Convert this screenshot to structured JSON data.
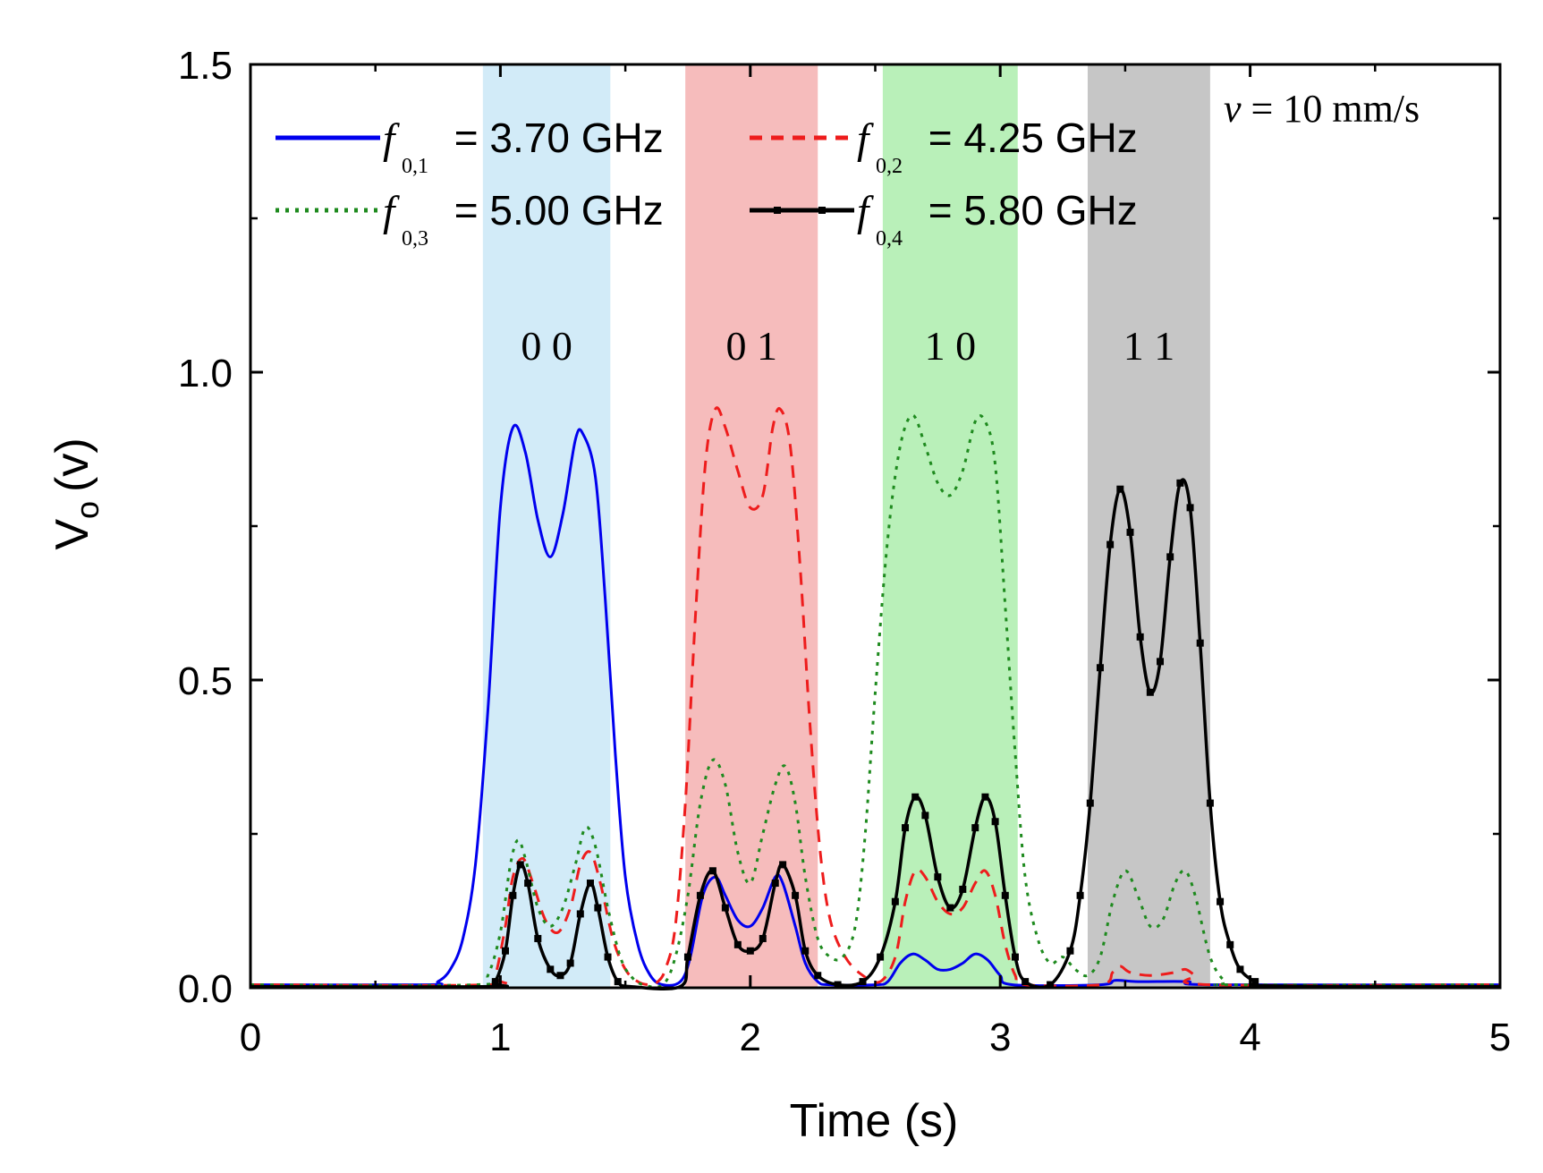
{
  "chart_data": {
    "type": "line",
    "title": "",
    "xlabel": "Time (s)",
    "ylabel_main": "V",
    "ylabel_sub": "o",
    "ylabel_unit": "(v)",
    "xlim": [
      0,
      5
    ],
    "ylim": [
      0,
      1.5
    ],
    "xticks": [
      {
        "value": 0,
        "label": "0"
      },
      {
        "value": 1,
        "label": "1"
      },
      {
        "value": 2,
        "label": "2"
      },
      {
        "value": 3,
        "label": "3"
      },
      {
        "value": 4,
        "label": "4"
      },
      {
        "value": 5,
        "label": "5"
      }
    ],
    "yticks": [
      {
        "value": 0.0,
        "label": "0.0"
      },
      {
        "value": 0.5,
        "label": "0.5"
      },
      {
        "value": 1.0,
        "label": "1.0"
      },
      {
        "value": 1.5,
        "label": "1.5"
      }
    ],
    "grid": false,
    "annotation": {
      "symbol": "v",
      "text": " = 10 mm/s"
    },
    "bands": [
      {
        "label": "0 0",
        "start": 0.93,
        "end": 1.44,
        "color": "#d2ebf8"
      },
      {
        "label": "0 1",
        "start": 1.74,
        "end": 2.27,
        "color": "#f6bcbc"
      },
      {
        "label": "1 0",
        "start": 2.53,
        "end": 3.07,
        "color": "#b9f0b9"
      },
      {
        "label": "1 1",
        "start": 3.35,
        "end": 3.84,
        "color": "#c6c6c6"
      }
    ],
    "series": [
      {
        "name": "f0,1 = 3.70 GHz",
        "sym": "f",
        "sub": "0,1",
        "freq": " = 3.70 GHz",
        "color": "#0000ee",
        "dash": "",
        "markers": false,
        "points": [
          [
            0,
            0.005
          ],
          [
            0.7,
            0.005
          ],
          [
            0.75,
            0.01
          ],
          [
            0.8,
            0.03
          ],
          [
            0.85,
            0.08
          ],
          [
            0.9,
            0.2
          ],
          [
            0.95,
            0.45
          ],
          [
            1.0,
            0.78
          ],
          [
            1.05,
            0.91
          ],
          [
            1.1,
            0.87
          ],
          [
            1.15,
            0.76
          ],
          [
            1.2,
            0.7
          ],
          [
            1.25,
            0.77
          ],
          [
            1.3,
            0.89
          ],
          [
            1.33,
            0.9
          ],
          [
            1.38,
            0.83
          ],
          [
            1.42,
            0.63
          ],
          [
            1.46,
            0.38
          ],
          [
            1.5,
            0.18
          ],
          [
            1.55,
            0.07
          ],
          [
            1.6,
            0.02
          ],
          [
            1.65,
            0.005
          ],
          [
            1.72,
            0.01
          ],
          [
            1.76,
            0.05
          ],
          [
            1.81,
            0.15
          ],
          [
            1.86,
            0.18
          ],
          [
            1.9,
            0.15
          ],
          [
            1.95,
            0.11
          ],
          [
            2.0,
            0.1
          ],
          [
            2.05,
            0.13
          ],
          [
            2.1,
            0.18
          ],
          [
            2.13,
            0.17
          ],
          [
            2.18,
            0.1
          ],
          [
            2.22,
            0.04
          ],
          [
            2.27,
            0.01
          ],
          [
            2.32,
            0.005
          ],
          [
            2.5,
            0.005
          ],
          [
            2.55,
            0.01
          ],
          [
            2.6,
            0.04
          ],
          [
            2.65,
            0.055
          ],
          [
            2.7,
            0.045
          ],
          [
            2.75,
            0.03
          ],
          [
            2.8,
            0.03
          ],
          [
            2.85,
            0.04
          ],
          [
            2.9,
            0.055
          ],
          [
            2.95,
            0.045
          ],
          [
            3.0,
            0.02
          ],
          [
            3.05,
            0.005
          ],
          [
            3.4,
            0.005
          ],
          [
            3.46,
            0.012
          ],
          [
            3.55,
            0.01
          ],
          [
            3.75,
            0.01
          ],
          [
            3.85,
            0.005
          ],
          [
            5,
            0.005
          ]
        ]
      },
      {
        "name": "f0,2 = 4.25 GHz",
        "sym": "f",
        "sub": "0,2",
        "freq": " = 4.25 GHz",
        "color": "#ee1c1c",
        "dash": "14,10",
        "markers": false,
        "points": [
          [
            0,
            0.005
          ],
          [
            0.95,
            0.005
          ],
          [
            0.98,
            0.02
          ],
          [
            1.02,
            0.1
          ],
          [
            1.05,
            0.18
          ],
          [
            1.09,
            0.21
          ],
          [
            1.13,
            0.17
          ],
          [
            1.18,
            0.11
          ],
          [
            1.23,
            0.09
          ],
          [
            1.28,
            0.13
          ],
          [
            1.32,
            0.2
          ],
          [
            1.36,
            0.22
          ],
          [
            1.4,
            0.17
          ],
          [
            1.45,
            0.08
          ],
          [
            1.5,
            0.03
          ],
          [
            1.55,
            0.01
          ],
          [
            1.6,
            0.005
          ],
          [
            1.63,
            0.01
          ],
          [
            1.66,
            0.03
          ],
          [
            1.7,
            0.1
          ],
          [
            1.74,
            0.3
          ],
          [
            1.78,
            0.6
          ],
          [
            1.82,
            0.85
          ],
          [
            1.86,
            0.94
          ],
          [
            1.9,
            0.91
          ],
          [
            1.95,
            0.84
          ],
          [
            2.0,
            0.78
          ],
          [
            2.05,
            0.8
          ],
          [
            2.09,
            0.91
          ],
          [
            2.12,
            0.94
          ],
          [
            2.16,
            0.88
          ],
          [
            2.2,
            0.68
          ],
          [
            2.24,
            0.42
          ],
          [
            2.28,
            0.22
          ],
          [
            2.32,
            0.11
          ],
          [
            2.38,
            0.05
          ],
          [
            2.45,
            0.02
          ],
          [
            2.52,
            0.01
          ],
          [
            2.58,
            0.05
          ],
          [
            2.62,
            0.14
          ],
          [
            2.66,
            0.19
          ],
          [
            2.7,
            0.18
          ],
          [
            2.75,
            0.14
          ],
          [
            2.8,
            0.12
          ],
          [
            2.85,
            0.13
          ],
          [
            2.9,
            0.17
          ],
          [
            2.94,
            0.19
          ],
          [
            2.98,
            0.15
          ],
          [
            3.02,
            0.07
          ],
          [
            3.06,
            0.02
          ],
          [
            3.1,
            0.005
          ],
          [
            3.4,
            0.005
          ],
          [
            3.45,
            0.025
          ],
          [
            3.48,
            0.035
          ],
          [
            3.52,
            0.025
          ],
          [
            3.6,
            0.02
          ],
          [
            3.7,
            0.025
          ],
          [
            3.74,
            0.03
          ],
          [
            3.78,
            0.02
          ],
          [
            3.84,
            0.005
          ],
          [
            5,
            0.005
          ]
        ]
      },
      {
        "name": "f0,3 = 5.00 GHz",
        "sym": "f",
        "sub": "0,3",
        "freq": " = 5.00 GHz",
        "color": "#1e8a1e",
        "dash": "4,7",
        "markers": false,
        "points": [
          [
            0,
            0.005
          ],
          [
            0.9,
            0.005
          ],
          [
            0.95,
            0.02
          ],
          [
            1.0,
            0.09
          ],
          [
            1.04,
            0.2
          ],
          [
            1.07,
            0.24
          ],
          [
            1.1,
            0.21
          ],
          [
            1.15,
            0.13
          ],
          [
            1.2,
            0.1
          ],
          [
            1.25,
            0.13
          ],
          [
            1.3,
            0.2
          ],
          [
            1.34,
            0.26
          ],
          [
            1.38,
            0.23
          ],
          [
            1.43,
            0.13
          ],
          [
            1.48,
            0.05
          ],
          [
            1.52,
            0.02
          ],
          [
            1.57,
            0.005
          ],
          [
            1.65,
            0.005
          ],
          [
            1.7,
            0.05
          ],
          [
            1.75,
            0.15
          ],
          [
            1.8,
            0.3
          ],
          [
            1.85,
            0.37
          ],
          [
            1.9,
            0.33
          ],
          [
            1.95,
            0.22
          ],
          [
            2.0,
            0.17
          ],
          [
            2.05,
            0.25
          ],
          [
            2.1,
            0.33
          ],
          [
            2.14,
            0.36
          ],
          [
            2.18,
            0.3
          ],
          [
            2.22,
            0.18
          ],
          [
            2.27,
            0.08
          ],
          [
            2.32,
            0.05
          ],
          [
            2.37,
            0.05
          ],
          [
            2.42,
            0.1
          ],
          [
            2.46,
            0.25
          ],
          [
            2.5,
            0.48
          ],
          [
            2.55,
            0.73
          ],
          [
            2.6,
            0.88
          ],
          [
            2.65,
            0.93
          ],
          [
            2.7,
            0.88
          ],
          [
            2.75,
            0.82
          ],
          [
            2.8,
            0.8
          ],
          [
            2.85,
            0.84
          ],
          [
            2.9,
            0.92
          ],
          [
            2.94,
            0.92
          ],
          [
            2.98,
            0.85
          ],
          [
            3.02,
            0.62
          ],
          [
            3.06,
            0.38
          ],
          [
            3.1,
            0.18
          ],
          [
            3.15,
            0.08
          ],
          [
            3.2,
            0.04
          ],
          [
            3.25,
            0.05
          ],
          [
            3.3,
            0.03
          ],
          [
            3.35,
            0.02
          ],
          [
            3.4,
            0.05
          ],
          [
            3.45,
            0.14
          ],
          [
            3.5,
            0.19
          ],
          [
            3.55,
            0.15
          ],
          [
            3.6,
            0.1
          ],
          [
            3.65,
            0.11
          ],
          [
            3.7,
            0.17
          ],
          [
            3.74,
            0.19
          ],
          [
            3.78,
            0.15
          ],
          [
            3.84,
            0.05
          ],
          [
            3.9,
            0.01
          ],
          [
            3.95,
            0.005
          ],
          [
            5,
            0.005
          ]
        ]
      },
      {
        "name": "f0,4 = 5.80 GHz",
        "sym": "f",
        "sub": "0,4",
        "freq": " = 5.80 GHz",
        "color": "#000000",
        "dash": "",
        "markers": true,
        "points": [
          [
            0,
            0.002
          ],
          [
            0.95,
            0.002
          ],
          [
            0.98,
            0.01
          ],
          [
            1.02,
            0.06
          ],
          [
            1.05,
            0.15
          ],
          [
            1.08,
            0.2
          ],
          [
            1.11,
            0.17
          ],
          [
            1.15,
            0.08
          ],
          [
            1.2,
            0.03
          ],
          [
            1.24,
            0.02
          ],
          [
            1.28,
            0.04
          ],
          [
            1.32,
            0.12
          ],
          [
            1.36,
            0.17
          ],
          [
            1.39,
            0.13
          ],
          [
            1.43,
            0.05
          ],
          [
            1.47,
            0.01
          ],
          [
            1.52,
            0.002
          ],
          [
            1.72,
            0.002
          ],
          [
            1.75,
            0.05
          ],
          [
            1.8,
            0.15
          ],
          [
            1.85,
            0.19
          ],
          [
            1.9,
            0.13
          ],
          [
            1.95,
            0.07
          ],
          [
            2.0,
            0.06
          ],
          [
            2.05,
            0.08
          ],
          [
            2.1,
            0.17
          ],
          [
            2.13,
            0.2
          ],
          [
            2.18,
            0.15
          ],
          [
            2.22,
            0.06
          ],
          [
            2.27,
            0.02
          ],
          [
            2.35,
            0.005
          ],
          [
            2.45,
            0.01
          ],
          [
            2.52,
            0.05
          ],
          [
            2.58,
            0.14
          ],
          [
            2.62,
            0.26
          ],
          [
            2.66,
            0.31
          ],
          [
            2.7,
            0.28
          ],
          [
            2.75,
            0.18
          ],
          [
            2.8,
            0.13
          ],
          [
            2.85,
            0.16
          ],
          [
            2.9,
            0.26
          ],
          [
            2.94,
            0.31
          ],
          [
            2.98,
            0.27
          ],
          [
            3.02,
            0.15
          ],
          [
            3.06,
            0.05
          ],
          [
            3.1,
            0.01
          ],
          [
            3.2,
            0.005
          ],
          [
            3.28,
            0.06
          ],
          [
            3.32,
            0.15
          ],
          [
            3.36,
            0.3
          ],
          [
            3.4,
            0.52
          ],
          [
            3.44,
            0.72
          ],
          [
            3.48,
            0.81
          ],
          [
            3.52,
            0.74
          ],
          [
            3.56,
            0.57
          ],
          [
            3.6,
            0.48
          ],
          [
            3.64,
            0.53
          ],
          [
            3.68,
            0.7
          ],
          [
            3.72,
            0.82
          ],
          [
            3.76,
            0.78
          ],
          [
            3.8,
            0.56
          ],
          [
            3.84,
            0.3
          ],
          [
            3.88,
            0.14
          ],
          [
            3.92,
            0.07
          ],
          [
            3.96,
            0.03
          ],
          [
            4.02,
            0.01
          ],
          [
            4.1,
            0.003
          ],
          [
            5,
            0.002
          ]
        ]
      }
    ]
  }
}
